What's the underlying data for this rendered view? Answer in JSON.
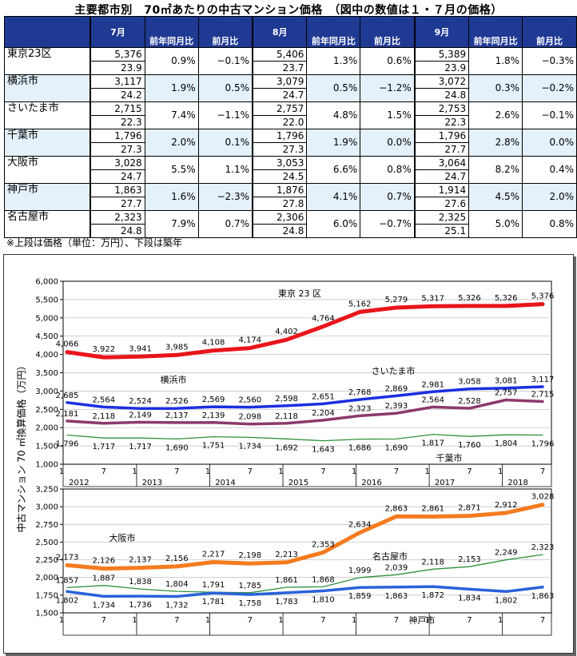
{
  "title": "主要都市別　70㎡あたりの中古マンション価格　（図中の数値は１・７月の価格）",
  "table": {
    "months": [
      "7月",
      "8月",
      "9月"
    ],
    "col_yoy": "前年同月比",
    "col_mom": "前月比",
    "rows": [
      {
        "city": "東京23区",
        "cells": [
          {
            "price": "5,376",
            "age": "23.9",
            "yoy": "0.9%",
            "mom": "−0.1%"
          },
          {
            "price": "5,406",
            "age": "23.7",
            "yoy": "1.3%",
            "mom": "0.6%"
          },
          {
            "price": "5,389",
            "age": "23.9",
            "yoy": "1.8%",
            "mom": "−0.3%"
          }
        ]
      },
      {
        "city": "横浜市",
        "cells": [
          {
            "price": "3,117",
            "age": "24.2",
            "yoy": "1.9%",
            "mom": "0.5%"
          },
          {
            "price": "3,079",
            "age": "24.7",
            "yoy": "0.5%",
            "mom": "−1.2%"
          },
          {
            "price": "3,072",
            "age": "24.8",
            "yoy": "0.3%",
            "mom": "−0.2%"
          }
        ]
      },
      {
        "city": "さいたま市",
        "cells": [
          {
            "price": "2,715",
            "age": "22.3",
            "yoy": "7.4%",
            "mom": "−1.1%"
          },
          {
            "price": "2,757",
            "age": "22.0",
            "yoy": "4.8%",
            "mom": "1.5%"
          },
          {
            "price": "2,753",
            "age": "22.3",
            "yoy": "2.6%",
            "mom": "−0.1%"
          }
        ]
      },
      {
        "city": "千葉市",
        "cells": [
          {
            "price": "1,796",
            "age": "27.3",
            "yoy": "2.0%",
            "mom": "0.1%"
          },
          {
            "price": "1,796",
            "age": "27.3",
            "yoy": "1.9%",
            "mom": "0.0%"
          },
          {
            "price": "1,796",
            "age": "27.7",
            "yoy": "2.8%",
            "mom": "0.0%"
          }
        ]
      },
      {
        "city": "大阪市",
        "cells": [
          {
            "price": "3,028",
            "age": "24.7",
            "yoy": "5.5%",
            "mom": "1.1%"
          },
          {
            "price": "3,053",
            "age": "24.5",
            "yoy": "6.6%",
            "mom": "0.8%"
          },
          {
            "price": "3,064",
            "age": "24.7",
            "yoy": "8.2%",
            "mom": "0.4%"
          }
        ]
      },
      {
        "city": "神戸市",
        "cells": [
          {
            "price": "1,863",
            "age": "27.7",
            "yoy": "1.6%",
            "mom": "−2.3%"
          },
          {
            "price": "1,876",
            "age": "27.8",
            "yoy": "4.1%",
            "mom": "0.7%"
          },
          {
            "price": "1,914",
            "age": "27.6",
            "yoy": "4.5%",
            "mom": "2.0%"
          }
        ]
      },
      {
        "city": "名古屋市",
        "cells": [
          {
            "price": "2,323",
            "age": "24.8",
            "yoy": "7.9%",
            "mom": "0.7%"
          },
          {
            "price": "2,306",
            "age": "24.8",
            "yoy": "6.0%",
            "mom": "−0.7%"
          },
          {
            "price": "2,325",
            "age": "25.1",
            "yoy": "5.0%",
            "mom": "0.8%"
          }
        ]
      }
    ]
  },
  "note": "※上段は価格（単位：万円）、下段は築年",
  "chart_data": {
    "type": "line",
    "ylabel": "中古マンション 70 ㎡換算価格（万円）",
    "x_ticks": [
      "1",
      "7",
      "1",
      "7",
      "1",
      "7",
      "1",
      "7",
      "1",
      "7",
      "1",
      "7",
      "1",
      "7"
    ],
    "x_years": [
      "2012",
      "2013",
      "2014",
      "2015",
      "2016",
      "2017",
      "2018"
    ],
    "x_points": [
      "2012-01",
      "2012-07",
      "2013-01",
      "2013-07",
      "2014-01",
      "2014-07",
      "2015-01",
      "2015-07",
      "2016-01",
      "2016-07",
      "2017-01",
      "2017-07",
      "2018-01",
      "2018-07"
    ],
    "panels": [
      {
        "ylim": [
          1000,
          6000
        ],
        "yticks": [
          "1,000",
          "1,500",
          "2,000",
          "2,500",
          "3,000",
          "3,500",
          "4,000",
          "4,500",
          "5,000",
          "5,500",
          "6,000"
        ],
        "series": [
          {
            "name": "東京 23 区",
            "color": "#e8151b",
            "width": 5,
            "values": [
              4066,
              3922,
              3941,
              3985,
              4108,
              4174,
              4402,
              4764,
              5162,
              5279,
              5317,
              5326,
              5326,
              5376
            ],
            "labels": [
              "4,066",
              "3,922",
              "3,941",
              "3,985",
              "4,108",
              "4,174",
              "4,402",
              "4,764",
              "5,162",
              "5,279",
              "5,317",
              "5,326",
              "5,326",
              "5,376"
            ]
          },
          {
            "name": "横浜市",
            "color": "#1c2fe0",
            "width": 3.5,
            "values": [
              2685,
              2564,
              2524,
              2526,
              2569,
              2560,
              2598,
              2651,
              2768,
              2869,
              2981,
              3058,
              3081,
              3117
            ],
            "labels": [
              "2,685",
              "2,564",
              "2,524",
              "2,526",
              "2,569",
              "2,560",
              "2,598",
              "2,651",
              "2,768",
              "2,869",
              "2,981",
              "3,058",
              "3,081",
              "3,117"
            ]
          },
          {
            "name": "さいたま市",
            "color": "#8c3a6a",
            "width": 3.5,
            "values": [
              2181,
              2118,
              2149,
              2137,
              2139,
              2098,
              2118,
              2204,
              2323,
              2393,
              2564,
              2528,
              2757,
              2715
            ],
            "labels": [
              "2,181",
              "2,118",
              "2,149",
              "2,137",
              "2,139",
              "2,098",
              "2,118",
              "2,204",
              "2,323",
              "2,393",
              "2,564",
              "2,528",
              "2,757",
              "2,715"
            ]
          },
          {
            "name": "千葉市",
            "color": "#2f8f3a",
            "width": 1.3,
            "values": [
              1796,
              1717,
              1717,
              1690,
              1751,
              1734,
              1692,
              1643,
              1686,
              1690,
              1817,
              1760,
              1804,
              1796
            ],
            "labels": [
              "1,796",
              "1,717",
              "1,717",
              "1,690",
              "1,751",
              "1,734",
              "1,692",
              "1,643",
              "1,686",
              "1,690",
              "1,817",
              "1,760",
              "1,804",
              "1,796"
            ]
          }
        ]
      },
      {
        "ylim": [
          1500,
          3250
        ],
        "yticks": [
          "1,500",
          "1,750",
          "2,000",
          "2,250",
          "2,500",
          "2,750",
          "3,000",
          "3,250"
        ],
        "series": [
          {
            "name": "大阪市",
            "color": "#f47b1f",
            "width": 5,
            "values": [
              2173,
              2126,
              2137,
              2156,
              2217,
              2198,
              2213,
              2353,
              2634,
              2863,
              2861,
              2871,
              2912,
              3028
            ],
            "labels": [
              "2,173",
              "2,126",
              "2,137",
              "2,156",
              "2,217",
              "2,198",
              "2,213",
              "2,353",
              "2,634",
              "2,863",
              "2,861",
              "2,871",
              "2,912",
              "3,028"
            ]
          },
          {
            "name": "名古屋市",
            "color": "#2f8f3a",
            "width": 1.3,
            "values": [
              1857,
              1887,
              1838,
              1804,
              1791,
              1785,
              1861,
              1868,
              1999,
              2039,
              2118,
              2153,
              2249,
              2323
            ],
            "labels": [
              "1,857",
              "1,887",
              "1,838",
              "1,804",
              "1,791",
              "1,785",
              "1,861",
              "1,868",
              "1,999",
              "2,039",
              "2,118",
              "2,153",
              "2,249",
              "2,323"
            ]
          },
          {
            "name": "神戸市",
            "color": "#2a62d9",
            "width": 3.5,
            "values": [
              1802,
              1734,
              1736,
              1732,
              1781,
              1758,
              1783,
              1810,
              1859,
              1863,
              1872,
              1834,
              1802,
              1863
            ],
            "labels": [
              "1,802",
              "1,734",
              "1,736",
              "1,732",
              "1,781",
              "1,758",
              "1,783",
              "1,810",
              "1,859",
              "1,863",
              "1,872",
              "1,834",
              "1,802",
              "1,863"
            ]
          }
        ]
      }
    ]
  }
}
